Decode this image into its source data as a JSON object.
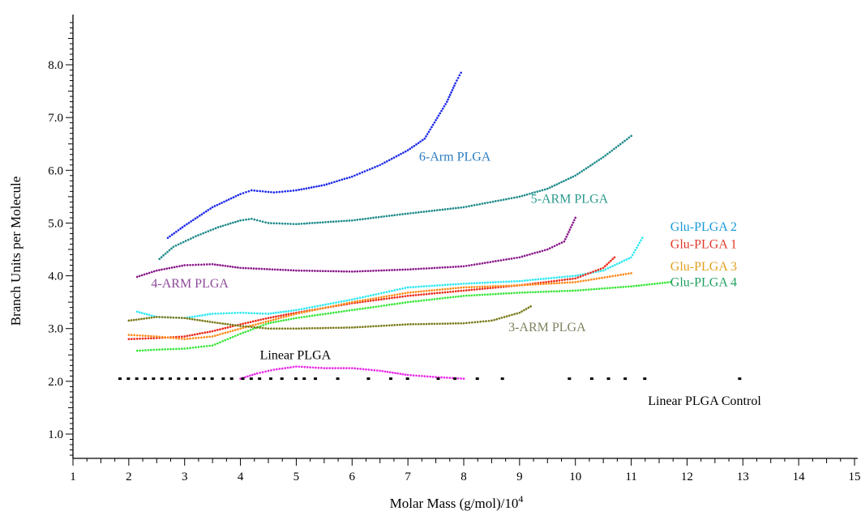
{
  "chart_data": {
    "type": "scatter",
    "title": "",
    "xlabel": "Molar Mass (g/mol)/10",
    "xlabel_sup": "4",
    "ylabel": "Branch Units per Molecule",
    "xlim": [
      1,
      15.2
    ],
    "ylim": [
      0.4,
      9.0
    ],
    "x_ticks": [
      1,
      2,
      3,
      4,
      5,
      6,
      7,
      8,
      9,
      10,
      11,
      12,
      13,
      14,
      15
    ],
    "x_tick_labels": [
      "1",
      "2",
      "3",
      "4",
      "5",
      "6",
      "7",
      "8",
      "9",
      "10",
      "11",
      "12",
      "13",
      "14",
      "15"
    ],
    "y_ticks": [
      1,
      2,
      3,
      4,
      5,
      6,
      7,
      8
    ],
    "y_tick_labels": [
      "1.0",
      "2.0",
      "3.0",
      "4.0",
      "5.0",
      "6.0",
      "7.0",
      "8.0"
    ],
    "grid": false,
    "series": [
      {
        "name": "6-Arm PLGA",
        "color": "#1f2bea",
        "label_color": "#2b7bbf",
        "style": "dense",
        "points": [
          [
            2.7,
            4.72
          ],
          [
            3.0,
            4.95
          ],
          [
            3.5,
            5.3
          ],
          [
            4.0,
            5.55
          ],
          [
            4.2,
            5.62
          ],
          [
            4.6,
            5.58
          ],
          [
            5.0,
            5.62
          ],
          [
            5.5,
            5.72
          ],
          [
            6.0,
            5.88
          ],
          [
            6.5,
            6.1
          ],
          [
            7.0,
            6.38
          ],
          [
            7.3,
            6.6
          ],
          [
            7.5,
            6.95
          ],
          [
            7.7,
            7.3
          ],
          [
            7.85,
            7.65
          ],
          [
            7.95,
            7.85
          ]
        ],
        "label_at": [
          7.2,
          6.18
        ]
      },
      {
        "name": "5-ARM PLGA",
        "color": "#1e8a8a",
        "label_color": "#2a9a8e",
        "style": "dense",
        "points": [
          [
            2.55,
            4.32
          ],
          [
            2.8,
            4.55
          ],
          [
            3.2,
            4.75
          ],
          [
            3.6,
            4.92
          ],
          [
            4.0,
            5.05
          ],
          [
            4.2,
            5.08
          ],
          [
            4.5,
            5.0
          ],
          [
            5.0,
            4.98
          ],
          [
            6.0,
            5.05
          ],
          [
            7.0,
            5.18
          ],
          [
            8.0,
            5.3
          ],
          [
            9.0,
            5.5
          ],
          [
            9.5,
            5.65
          ],
          [
            10.0,
            5.9
          ],
          [
            10.5,
            6.25
          ],
          [
            11.0,
            6.65
          ]
        ],
        "label_at": [
          9.2,
          5.38
        ]
      },
      {
        "name": "4-ARM PLGA",
        "color": "#8a1a8a",
        "label_color": "#8e4a9a",
        "style": "dense",
        "points": [
          [
            2.15,
            3.98
          ],
          [
            2.5,
            4.1
          ],
          [
            3.0,
            4.2
          ],
          [
            3.5,
            4.22
          ],
          [
            4.0,
            4.15
          ],
          [
            5.0,
            4.1
          ],
          [
            6.0,
            4.08
          ],
          [
            7.0,
            4.12
          ],
          [
            8.0,
            4.18
          ],
          [
            9.0,
            4.35
          ],
          [
            9.5,
            4.5
          ],
          [
            9.8,
            4.65
          ],
          [
            10.0,
            5.1
          ]
        ],
        "label_at": [
          2.4,
          3.78
        ]
      },
      {
        "name": "Glu-PLGA 2",
        "color": "#2ee8f0",
        "label_color": "#1a9ad8",
        "style": "dense",
        "points": [
          [
            2.15,
            3.32
          ],
          [
            2.5,
            3.22
          ],
          [
            3.0,
            3.2
          ],
          [
            3.5,
            3.28
          ],
          [
            4.0,
            3.3
          ],
          [
            4.5,
            3.28
          ],
          [
            5.0,
            3.35
          ],
          [
            6.0,
            3.55
          ],
          [
            7.0,
            3.78
          ],
          [
            8.0,
            3.85
          ],
          [
            9.0,
            3.9
          ],
          [
            10.0,
            4.0
          ],
          [
            10.5,
            4.1
          ],
          [
            11.0,
            4.35
          ],
          [
            11.2,
            4.72
          ]
        ],
        "label_at": [
          11.7,
          4.85
        ]
      },
      {
        "name": "Glu-PLGA 1",
        "color": "#ea2a1a",
        "label_color": "#e03a2a",
        "style": "dense",
        "points": [
          [
            2.0,
            2.8
          ],
          [
            2.5,
            2.82
          ],
          [
            3.0,
            2.85
          ],
          [
            3.5,
            2.95
          ],
          [
            4.0,
            3.08
          ],
          [
            4.5,
            3.2
          ],
          [
            5.0,
            3.3
          ],
          [
            6.0,
            3.48
          ],
          [
            7.0,
            3.62
          ],
          [
            8.0,
            3.72
          ],
          [
            9.0,
            3.82
          ],
          [
            10.0,
            3.95
          ],
          [
            10.5,
            4.15
          ],
          [
            10.7,
            4.35
          ]
        ],
        "label_at": [
          11.7,
          4.52
        ]
      },
      {
        "name": "Glu-PLGA 3",
        "color": "#ff8a1a",
        "label_color": "#e0a020",
        "style": "dense",
        "points": [
          [
            2.0,
            2.88
          ],
          [
            2.5,
            2.85
          ],
          [
            3.0,
            2.8
          ],
          [
            3.5,
            2.85
          ],
          [
            4.0,
            3.0
          ],
          [
            5.0,
            3.28
          ],
          [
            6.0,
            3.5
          ],
          [
            7.0,
            3.68
          ],
          [
            8.0,
            3.78
          ],
          [
            9.0,
            3.82
          ],
          [
            10.0,
            3.88
          ],
          [
            11.0,
            4.05
          ]
        ],
        "label_at": [
          11.7,
          4.1
        ]
      },
      {
        "name": "Glu-PLGA 4",
        "color": "#3ae63a",
        "label_color": "#1ea060",
        "style": "dense",
        "points": [
          [
            2.15,
            2.58
          ],
          [
            2.5,
            2.6
          ],
          [
            3.0,
            2.62
          ],
          [
            3.5,
            2.68
          ],
          [
            4.0,
            2.9
          ],
          [
            4.5,
            3.1
          ],
          [
            5.0,
            3.2
          ],
          [
            6.0,
            3.35
          ],
          [
            7.0,
            3.5
          ],
          [
            8.0,
            3.62
          ],
          [
            9.0,
            3.68
          ],
          [
            10.0,
            3.72
          ],
          [
            11.0,
            3.8
          ],
          [
            11.7,
            3.88
          ]
        ],
        "label_at": [
          11.7,
          3.8
        ]
      },
      {
        "name": "3-ARM PLGA",
        "color": "#7a7a1a",
        "label_color": "#808060",
        "style": "dense",
        "points": [
          [
            2.0,
            3.15
          ],
          [
            2.5,
            3.22
          ],
          [
            3.0,
            3.2
          ],
          [
            3.5,
            3.12
          ],
          [
            4.0,
            3.05
          ],
          [
            4.5,
            3.0
          ],
          [
            5.0,
            3.0
          ],
          [
            6.0,
            3.02
          ],
          [
            7.0,
            3.08
          ],
          [
            8.0,
            3.1
          ],
          [
            8.5,
            3.15
          ],
          [
            9.0,
            3.3
          ],
          [
            9.2,
            3.42
          ]
        ],
        "label_at": [
          8.8,
          2.95
        ]
      },
      {
        "name": "Linear PLGA",
        "color": "#e82ae8",
        "label_color": "#000000",
        "style": "dense",
        "points": [
          [
            4.0,
            2.05
          ],
          [
            4.3,
            2.15
          ],
          [
            4.6,
            2.22
          ],
          [
            5.0,
            2.28
          ],
          [
            5.5,
            2.25
          ],
          [
            6.0,
            2.25
          ],
          [
            6.5,
            2.2
          ],
          [
            7.0,
            2.12
          ],
          [
            7.5,
            2.08
          ],
          [
            8.0,
            2.05
          ]
        ],
        "label_at": [
          4.35,
          2.42
        ]
      },
      {
        "name": "Linear PLGA Control",
        "color": "#000000",
        "label_color": "#000000",
        "style": "sparse",
        "points": [
          [
            1.85,
            2.05
          ],
          [
            2.0,
            2.05
          ],
          [
            2.15,
            2.05
          ],
          [
            2.3,
            2.05
          ],
          [
            2.45,
            2.05
          ],
          [
            2.6,
            2.05
          ],
          [
            2.75,
            2.05
          ],
          [
            2.9,
            2.05
          ],
          [
            3.05,
            2.05
          ],
          [
            3.2,
            2.05
          ],
          [
            3.35,
            2.05
          ],
          [
            3.5,
            2.05
          ],
          [
            3.7,
            2.05
          ],
          [
            3.85,
            2.05
          ],
          [
            4.05,
            2.05
          ],
          [
            4.2,
            2.05
          ],
          [
            4.35,
            2.05
          ],
          [
            4.55,
            2.05
          ],
          [
            4.75,
            2.05
          ],
          [
            5.0,
            2.05
          ],
          [
            5.15,
            2.05
          ],
          [
            5.35,
            2.05
          ],
          [
            5.75,
            2.05
          ],
          [
            6.3,
            2.05
          ],
          [
            6.7,
            2.05
          ],
          [
            7.0,
            2.05
          ],
          [
            7.55,
            2.05
          ],
          [
            7.85,
            2.05
          ],
          [
            8.25,
            2.05
          ],
          [
            8.7,
            2.05
          ],
          [
            9.9,
            2.05
          ],
          [
            10.3,
            2.05
          ],
          [
            10.6,
            2.05
          ],
          [
            10.9,
            2.05
          ],
          [
            11.25,
            2.05
          ],
          [
            12.95,
            2.05
          ]
        ],
        "label_at": [
          11.3,
          1.55
        ]
      }
    ]
  }
}
